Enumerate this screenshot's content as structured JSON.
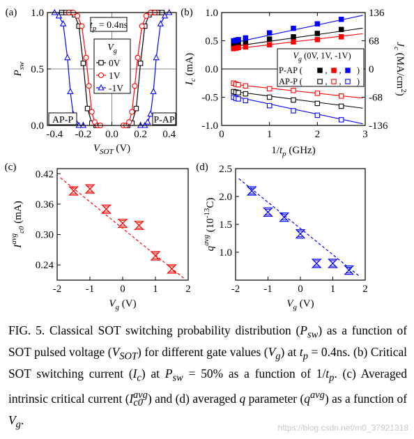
{
  "chart_data": [
    {
      "panel": "(a)",
      "type": "line",
      "xlabel": "V_SOT (V)",
      "ylabel": "P_sw",
      "xlim": [
        -0.45,
        0.45
      ],
      "ylim": [
        0,
        1
      ],
      "xticks": [
        "-0.4",
        "-0.2",
        "0.0",
        "0.2",
        "0.4"
      ],
      "yticks": [
        "0.0",
        "0.5",
        "1.0"
      ],
      "grid": "x=0 and y=0.5 reference lines",
      "annotations": [
        "t_p = 0.4ns",
        "AP-P",
        "P-AP"
      ],
      "legend_title": "V_g",
      "legend_position": "center",
      "series": [
        {
          "name": "0V",
          "marker": "square",
          "color": "#000000",
          "x": [
            -0.35,
            -0.32,
            -0.29,
            -0.26,
            -0.23,
            -0.2,
            -0.17,
            -0.14,
            -0.11,
            0.11,
            0.14,
            0.17,
            0.2,
            0.23,
            0.26,
            0.29,
            0.32,
            0.35
          ],
          "y": [
            1.0,
            1.0,
            1.0,
            0.98,
            0.88,
            0.55,
            0.15,
            0.02,
            0.0,
            0.0,
            0.02,
            0.15,
            0.55,
            0.88,
            0.98,
            1.0,
            1.0,
            1.0
          ]
        },
        {
          "name": "1V",
          "marker": "circle",
          "color": "#ff0000",
          "x": [
            -0.3,
            -0.27,
            -0.24,
            -0.21,
            -0.18,
            -0.16,
            -0.14,
            -0.12,
            -0.1,
            -0.08,
            0.08,
            0.1,
            0.12,
            0.14,
            0.16,
            0.18,
            0.21,
            0.24,
            0.27,
            0.3
          ],
          "y": [
            1.0,
            1.0,
            0.97,
            0.88,
            0.6,
            0.35,
            0.12,
            0.03,
            0.0,
            0.0,
            0.0,
            0.0,
            0.03,
            0.12,
            0.35,
            0.6,
            0.88,
            0.97,
            1.0,
            1.0
          ]
        },
        {
          "name": "-1V",
          "marker": "triangle",
          "color": "#0000ff",
          "x": [
            -0.4,
            -0.37,
            -0.34,
            -0.31,
            -0.29,
            -0.27,
            -0.25,
            -0.23,
            -0.2,
            0.2,
            0.23,
            0.25,
            0.27,
            0.29,
            0.31,
            0.34,
            0.37,
            0.4
          ],
          "y": [
            1.0,
            0.97,
            0.9,
            0.6,
            0.3,
            0.1,
            0.03,
            0.0,
            0.0,
            0.0,
            0.0,
            0.03,
            0.1,
            0.3,
            0.6,
            0.9,
            0.97,
            1.0
          ]
        }
      ]
    },
    {
      "panel": "(b)",
      "type": "scatter",
      "xlabel": "1/t_p (GHz)",
      "ylabel": "I_c (mA)",
      "ylabel_right": "J_c (MA/cm^2)",
      "xlim": [
        0,
        3
      ],
      "ylim": [
        -1,
        1
      ],
      "xticks": [
        "0",
        "1",
        "2",
        "3"
      ],
      "yticks": [
        "-1.0",
        "-0.5",
        "0.0",
        "0.5",
        "1.0"
      ],
      "yticks_right": [
        "-136",
        "-68",
        "0",
        "68",
        "136"
      ],
      "legend_title": "V_g (0V, 1V, -1V)",
      "legend_rows": [
        {
          "label": "P-AP (",
          "markers": "filled squares",
          "sep1": ",",
          "sep2": ",",
          "close": ")"
        },
        {
          "label": "AP-P (",
          "markers": "open squares",
          "sep1": ",",
          "sep2": ",",
          "close": ")"
        }
      ],
      "legend_position": "center-right",
      "x": [
        0.25,
        0.3,
        0.35,
        0.5,
        1.0,
        1.5,
        2.0,
        2.5
      ],
      "series": [
        {
          "name": "P-AP 0V",
          "color": "#000000",
          "filled": true,
          "values": [
            0.43,
            0.44,
            0.45,
            0.46,
            0.53,
            0.57,
            0.63,
            0.7
          ],
          "fit": [
            0.37,
            0.12
          ]
        },
        {
          "name": "P-AP 1V",
          "color": "#ff0000",
          "filled": true,
          "values": [
            0.36,
            0.37,
            0.38,
            0.39,
            0.43,
            0.48,
            0.52,
            0.57
          ],
          "fit": [
            0.33,
            0.1
          ]
        },
        {
          "name": "P-AP -1V",
          "color": "#0000ff",
          "filled": true,
          "values": [
            0.5,
            0.51,
            0.52,
            0.55,
            0.64,
            0.72,
            0.8,
            0.88
          ],
          "fit": [
            0.42,
            0.18
          ]
        },
        {
          "name": "AP-P 0V",
          "color": "#000000",
          "filled": false,
          "values": [
            -0.4,
            -0.41,
            -0.42,
            -0.44,
            -0.5,
            -0.55,
            -0.61,
            -0.66
          ],
          "fit": [
            -0.37,
            -0.11
          ]
        },
        {
          "name": "AP-P 1V",
          "color": "#ff0000",
          "filled": false,
          "values": [
            -0.25,
            -0.27,
            -0.28,
            -0.3,
            -0.35,
            -0.38,
            -0.43,
            -0.48
          ],
          "fit": [
            -0.25,
            -0.09
          ]
        },
        {
          "name": "AP-P -1V",
          "color": "#0000ff",
          "filled": false,
          "values": [
            -0.5,
            -0.52,
            -0.53,
            -0.56,
            -0.65,
            -0.74,
            -0.82,
            -0.9
          ],
          "fit": [
            -0.44,
            -0.18
          ]
        }
      ]
    },
    {
      "panel": "(c)",
      "type": "scatter",
      "xlabel": "V_g (V)",
      "ylabel": "I_c0^avg (mA)",
      "xlim": [
        -2,
        2
      ],
      "ylim": [
        0.21,
        0.43
      ],
      "xticks": [
        "-2",
        "-1",
        "0",
        "1",
        "2"
      ],
      "yticks": [
        "0.24",
        "0.30",
        "0.36",
        "0.42"
      ],
      "series": [
        {
          "name": "",
          "color": "#ff0000",
          "marker": "hourglass",
          "x": [
            -1.5,
            -1.0,
            -0.5,
            0.0,
            0.5,
            1.0,
            1.5
          ],
          "values": [
            0.386,
            0.39,
            0.35,
            0.322,
            0.318,
            0.258,
            0.232
          ],
          "fit": [
            -1.9,
            0.412,
            1.9,
            0.212
          ]
        }
      ]
    },
    {
      "panel": "(d)",
      "type": "scatter",
      "xlabel": "V_g (V)",
      "ylabel": "q^avg (10^-13 C)",
      "xlim": [
        -2,
        2
      ],
      "ylim": [
        0.5,
        2.5
      ],
      "xticks": [
        "-2",
        "-1",
        "0",
        "1",
        "2"
      ],
      "yticks": [
        "1.0",
        "1.5",
        "2.0",
        "2.5"
      ],
      "series": [
        {
          "name": "",
          "color": "#0000ff",
          "marker": "hourglass",
          "x": [
            -1.5,
            -1.0,
            -0.5,
            0.0,
            0.5,
            1.0,
            1.5
          ],
          "values": [
            2.1,
            1.72,
            1.63,
            1.33,
            0.8,
            0.8,
            0.68
          ],
          "fit": [
            -1.9,
            2.32,
            1.8,
            0.58
          ]
        }
      ]
    }
  ],
  "caption": {
    "fig_label": "FIG. 5.",
    "part1": " Classical SOT switching probability distribution (",
    "psw": "P",
    "psw_sub": "sw",
    "part2": ") as a function of SOT pulsed voltage (",
    "vsot": "V",
    "vsot_sub": "SOT",
    "part3": ") for different gate values (",
    "vg": "V",
    "vg_sub": "g",
    "part4": ") at ",
    "tp": "t",
    "tp_sub": "p",
    "part5": " = 0.4ns. (b) Critical SOT switching current (",
    "ic": "I",
    "ic_sub": "c",
    "part6": ") at ",
    "part7": " = 50% as a function of 1/",
    "part8": ". (c) Averaged intrinsic critical current (",
    "ic0": "I",
    "ic0_sup": "avg",
    "ic0_sub": "c0",
    "part9": ") and (d) averaged ",
    "q": "q",
    "part10": " parameter (",
    "qavg_sup": "avg",
    "part11": ") as a function of ",
    "part12": "."
  },
  "watermark": "https://blog.csdn.net/m0_37921318"
}
